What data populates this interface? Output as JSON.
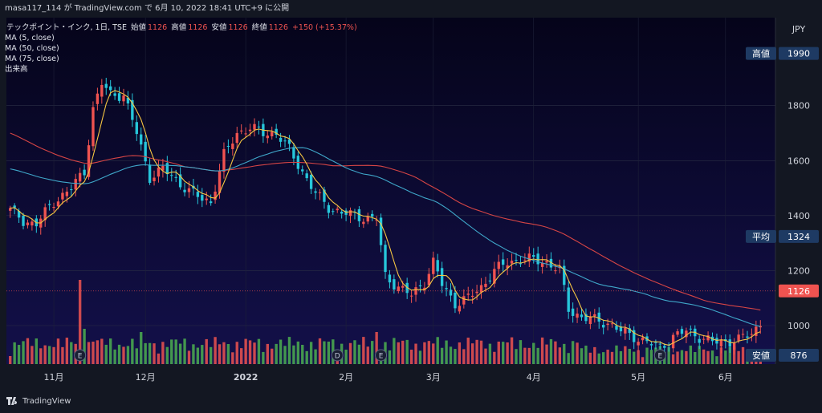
{
  "header": {
    "user": "masa117_114",
    "text": " が TradingView.com で 6月 10, 2022 18:41 UTC+9 に公開"
  },
  "legend": {
    "symbol": "テックポイント・インク, 1日, TSE",
    "open_label": "始値",
    "open": "1126",
    "high_label": "高値",
    "high": "1126",
    "low_label": "安値",
    "low": "1126",
    "close_label": "終値",
    "close": "1126",
    "change": "+150 (+15.37%)",
    "ma1": "MA (5, close)",
    "ma2": "MA (50, close)",
    "ma3": "MA (75, close)",
    "volume": "出来高"
  },
  "footer": {
    "brand": "TradingView"
  },
  "colors": {
    "bg": "#0b0920",
    "up": "#ef5350",
    "down": "#26c6da",
    "ma5": "#f5c542",
    "ma50": "#3fa7c9",
    "ma75": "#d64545",
    "vol_up": "#ef5350",
    "vol_down": "#4caf50"
  },
  "chart_data": {
    "type": "candlestick",
    "currency": "JPY",
    "y_ticks": [
      1000,
      1200,
      1400,
      1600,
      1800
    ],
    "ylim": [
      860,
      2120
    ],
    "x_labels": [
      {
        "label": "11月",
        "i": 10
      },
      {
        "label": "12月",
        "i": 31
      },
      {
        "label": "2022",
        "i": 54
      },
      {
        "label": "2月",
        "i": 77
      },
      {
        "label": "3月",
        "i": 97
      },
      {
        "label": "4月",
        "i": 120
      },
      {
        "label": "5月",
        "i": 144
      },
      {
        "label": "6月",
        "i": 164
      }
    ],
    "price_labels": [
      {
        "name": "高値",
        "value": 1990,
        "display": "1990"
      },
      {
        "name": "平均",
        "value": 1324,
        "display": "1324"
      },
      {
        "name": "",
        "value": 1126,
        "display": "1126"
      },
      {
        "name": "安値",
        "value": 876,
        "display": "876"
      }
    ],
    "event_markers": [
      {
        "label": "E",
        "i": 16
      },
      {
        "label": "D",
        "i": 75
      },
      {
        "label": "E",
        "i": 85
      },
      {
        "label": "E",
        "i": 149
      }
    ],
    "bars": 173,
    "series": [
      {
        "name": "MA (5, close)"
      },
      {
        "name": "MA (50, close)"
      },
      {
        "name": "MA (75, close)"
      },
      {
        "name": "出来高"
      }
    ]
  }
}
